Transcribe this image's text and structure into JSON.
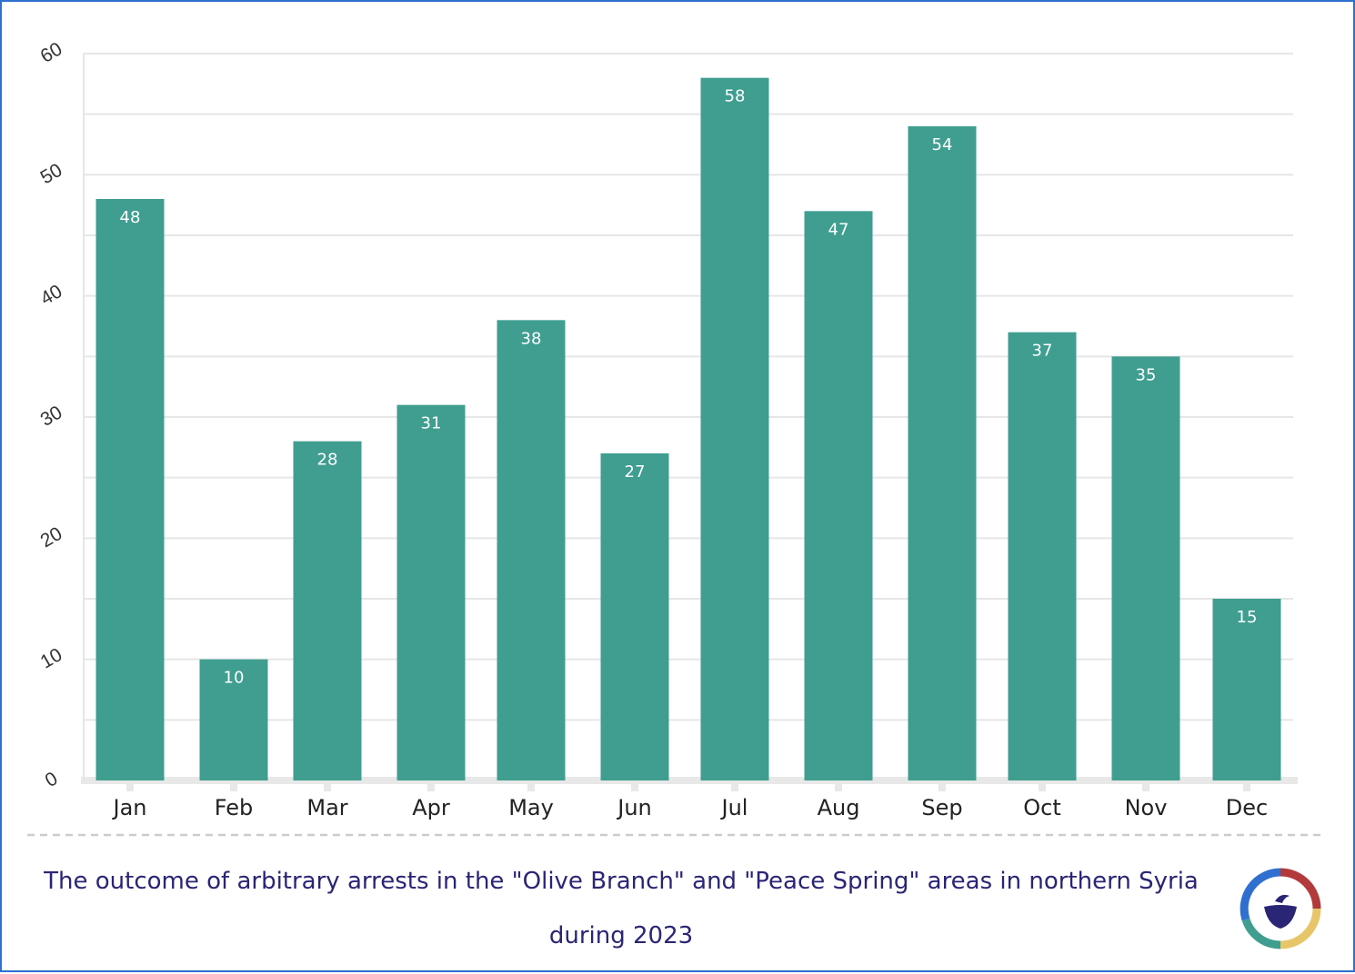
{
  "chart_data": {
    "type": "bar",
    "title": "",
    "xlabel": "",
    "ylabel": "",
    "categories": [
      "Jan",
      "Feb",
      "Mar",
      "Apr",
      "May",
      "Jun",
      "Jul",
      "Aug",
      "Sep",
      "Oct",
      "Nov",
      "Dec"
    ],
    "values": [
      48,
      10,
      28,
      31,
      38,
      27,
      58,
      47,
      54,
      37,
      35,
      15
    ],
    "ylim": [
      0,
      60
    ],
    "yticks": [
      0,
      10,
      20,
      30,
      40,
      50,
      60
    ],
    "grid": true,
    "legend": "none",
    "data_labels": true
  },
  "caption": "The outcome of arbitrary arrests in the \"Olive Branch\" and \"Peace Spring\" areas in northern Syria during 2023",
  "colors": {
    "bar": "#3f9e90",
    "grid": "#e6e6e6",
    "caption": "#2a2575",
    "border": "#2e6fd0"
  },
  "logo": {
    "icon": "dove-emblem-icon"
  }
}
